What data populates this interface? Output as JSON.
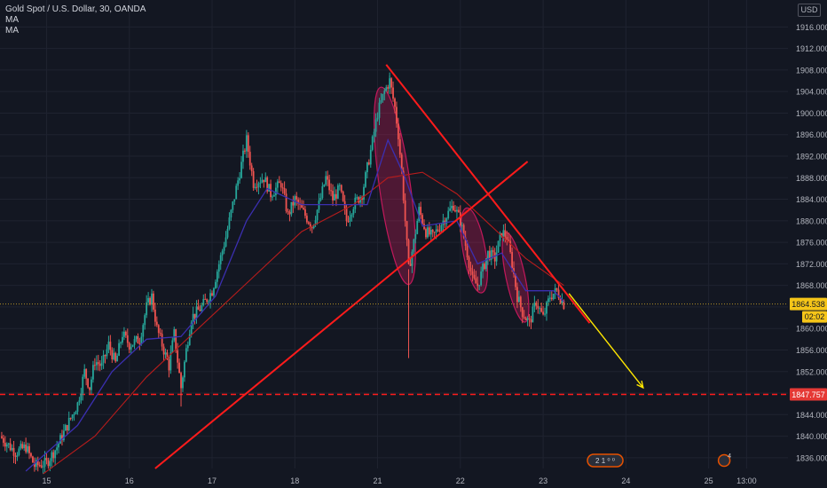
{
  "header": {
    "symbol_line": "Gold Spot / U.S. Dollar, 30, OANDA",
    "indicators": [
      "MA",
      "MA"
    ],
    "currency": "USD"
  },
  "colors": {
    "background": "#131722",
    "grid": "#1f2330",
    "up": "#26a69a",
    "down": "#ef5350",
    "ma_fast": "#3b2fb0",
    "ma_slow": "#b71c1c",
    "trend": "#ff1b1b",
    "arrow": "#ffe600",
    "price_tag": "#f5c518"
  },
  "chart_data": {
    "type": "candlestick",
    "y_ticks": [
      1836,
      1840,
      1844,
      1848,
      1852,
      1856,
      1860,
      1864,
      1868,
      1872,
      1876,
      1880,
      1884,
      1888,
      1892,
      1896,
      1900,
      1904,
      1908,
      1912,
      1916
    ],
    "y_tick_labels": [
      "1836.000",
      "1840.000",
      "1844.000",
      "1848.000",
      "1852.000",
      "1856.000",
      "1860.000",
      "1864.000",
      "1868.000",
      "1872.000",
      "1876.000",
      "1880.000",
      "1884.000",
      "1888.000",
      "1892.000",
      "1896.000",
      "1900.000",
      "1904.000",
      "1908.000",
      "1912.000",
      "1916.000"
    ],
    "ylim": [
      1834,
      1921
    ],
    "x_labels": [
      {
        "label": "15",
        "x": 2
      },
      {
        "label": "16",
        "x": 50
      },
      {
        "label": "17",
        "x": 98
      },
      {
        "label": "18",
        "x": 146
      },
      {
        "label": "21",
        "x": 194
      },
      {
        "label": "22",
        "x": 242
      },
      {
        "label": "23",
        "x": 290
      },
      {
        "label": "24",
        "x": 338
      },
      {
        "label": "25",
        "x": 386
      },
      {
        "label": "13:00",
        "x": 408
      }
    ],
    "xlim": [
      -25,
      432
    ],
    "last_price": {
      "value": 1864.538,
      "label": "1864.538",
      "countdown": "02:02"
    },
    "support_level": {
      "value": 1847.757,
      "label": "1847.757"
    },
    "path": [
      {
        "x": -25,
        "p": 1840
      },
      {
        "x": -16,
        "p": 1837
      },
      {
        "x": -10,
        "p": 1838
      },
      {
        "x": -5,
        "p": 1834.5
      },
      {
        "x": 2,
        "p": 1835
      },
      {
        "x": 8,
        "p": 1838
      },
      {
        "x": 14,
        "p": 1842
      },
      {
        "x": 20,
        "p": 1846
      },
      {
        "x": 24,
        "p": 1852
      },
      {
        "x": 27,
        "p": 1849
      },
      {
        "x": 30,
        "p": 1854
      },
      {
        "x": 34,
        "p": 1853
      },
      {
        "x": 38,
        "p": 1857
      },
      {
        "x": 42,
        "p": 1853.5
      },
      {
        "x": 46,
        "p": 1859
      },
      {
        "x": 50,
        "p": 1857
      },
      {
        "x": 56,
        "p": 1858
      },
      {
        "x": 60,
        "p": 1864
      },
      {
        "x": 63,
        "p": 1866
      },
      {
        "x": 66,
        "p": 1860
      },
      {
        "x": 70,
        "p": 1856
      },
      {
        "x": 73,
        "p": 1853
      },
      {
        "x": 76,
        "p": 1859
      },
      {
        "x": 80,
        "p": 1849
      },
      {
        "x": 83,
        "p": 1856
      },
      {
        "x": 86,
        "p": 1862
      },
      {
        "x": 92,
        "p": 1864
      },
      {
        "x": 98,
        "p": 1867
      },
      {
        "x": 102,
        "p": 1872
      },
      {
        "x": 106,
        "p": 1877
      },
      {
        "x": 110,
        "p": 1883
      },
      {
        "x": 114,
        "p": 1889
      },
      {
        "x": 118,
        "p": 1895
      },
      {
        "x": 122,
        "p": 1887
      },
      {
        "x": 128,
        "p": 1888
      },
      {
        "x": 132,
        "p": 1885
      },
      {
        "x": 138,
        "p": 1887
      },
      {
        "x": 142,
        "p": 1881
      },
      {
        "x": 146,
        "p": 1884
      },
      {
        "x": 150,
        "p": 1882
      },
      {
        "x": 156,
        "p": 1879
      },
      {
        "x": 160,
        "p": 1883
      },
      {
        "x": 164,
        "p": 1888
      },
      {
        "x": 168,
        "p": 1884
      },
      {
        "x": 172,
        "p": 1886
      },
      {
        "x": 176,
        "p": 1880
      },
      {
        "x": 180,
        "p": 1883
      },
      {
        "x": 185,
        "p": 1885
      },
      {
        "x": 190,
        "p": 1893
      },
      {
        "x": 194,
        "p": 1900
      },
      {
        "x": 198,
        "p": 1904
      },
      {
        "x": 201,
        "p": 1906
      },
      {
        "x": 204,
        "p": 1901
      },
      {
        "x": 206,
        "p": 1896
      },
      {
        "x": 208,
        "p": 1889
      },
      {
        "x": 210,
        "p": 1880
      },
      {
        "x": 212,
        "p": 1871
      },
      {
        "x": 215,
        "p": 1876
      },
      {
        "x": 218,
        "p": 1882
      },
      {
        "x": 222,
        "p": 1878
      },
      {
        "x": 226,
        "p": 1877
      },
      {
        "x": 230,
        "p": 1879
      },
      {
        "x": 234,
        "p": 1881
      },
      {
        "x": 238,
        "p": 1883
      },
      {
        "x": 242,
        "p": 1880
      },
      {
        "x": 246,
        "p": 1874
      },
      {
        "x": 249,
        "p": 1869
      },
      {
        "x": 252,
        "p": 1868
      },
      {
        "x": 255,
        "p": 1871
      },
      {
        "x": 258,
        "p": 1874
      },
      {
        "x": 262,
        "p": 1873
      },
      {
        "x": 266,
        "p": 1878
      },
      {
        "x": 269,
        "p": 1877
      },
      {
        "x": 272,
        "p": 1872
      },
      {
        "x": 275,
        "p": 1866
      },
      {
        "x": 278,
        "p": 1863
      },
      {
        "x": 282,
        "p": 1861
      },
      {
        "x": 286,
        "p": 1865
      },
      {
        "x": 290,
        "p": 1862
      },
      {
        "x": 294,
        "p": 1866
      },
      {
        "x": 298,
        "p": 1867
      },
      {
        "x": 302,
        "p": 1864.5
      }
    ],
    "spikes": [
      {
        "x": 80,
        "low": 1845.5
      },
      {
        "x": 212,
        "low": 1854.5
      },
      {
        "x": 201,
        "high": 1907
      }
    ],
    "ma_fast": [
      {
        "x": -10,
        "p": 1833.5
      },
      {
        "x": 20,
        "p": 1842
      },
      {
        "x": 40,
        "p": 1852
      },
      {
        "x": 60,
        "p": 1858
      },
      {
        "x": 80,
        "p": 1858.5
      },
      {
        "x": 100,
        "p": 1866
      },
      {
        "x": 118,
        "p": 1880
      },
      {
        "x": 130,
        "p": 1886
      },
      {
        "x": 150,
        "p": 1883
      },
      {
        "x": 170,
        "p": 1883
      },
      {
        "x": 188,
        "p": 1883
      },
      {
        "x": 200,
        "p": 1895
      },
      {
        "x": 210,
        "p": 1888
      },
      {
        "x": 220,
        "p": 1879
      },
      {
        "x": 240,
        "p": 1880
      },
      {
        "x": 252,
        "p": 1872
      },
      {
        "x": 266,
        "p": 1874
      },
      {
        "x": 280,
        "p": 1867
      },
      {
        "x": 296,
        "p": 1867
      },
      {
        "x": 302,
        "p": 1865
      }
    ],
    "ma_slow": [
      {
        "x": 0,
        "p": 1833
      },
      {
        "x": 30,
        "p": 1840
      },
      {
        "x": 60,
        "p": 1851
      },
      {
        "x": 90,
        "p": 1860
      },
      {
        "x": 120,
        "p": 1869
      },
      {
        "x": 150,
        "p": 1878
      },
      {
        "x": 180,
        "p": 1883
      },
      {
        "x": 200,
        "p": 1888
      },
      {
        "x": 220,
        "p": 1889
      },
      {
        "x": 240,
        "p": 1885
      },
      {
        "x": 260,
        "p": 1879
      },
      {
        "x": 280,
        "p": 1873
      },
      {
        "x": 302,
        "p": 1868
      }
    ],
    "drawings": {
      "descending_trendline": [
        {
          "x": 199,
          "p": 1909
        },
        {
          "x": 317,
          "p": 1861
        }
      ],
      "ascending_trendline": [
        {
          "x": 65,
          "p": 1834
        },
        {
          "x": 281,
          "p": 1891
        }
      ],
      "projection_arrow": [
        {
          "x": 305,
          "p": 1866.5
        },
        {
          "x": 348,
          "p": 1849
        }
      ],
      "ellipses": [
        {
          "cx": 204,
          "cy": 1886.5,
          "rx": 9,
          "ry": 18.5,
          "rot": -8
        },
        {
          "cx": 250,
          "cy": 1874.5,
          "rx": 6.5,
          "ry": 8,
          "rot": -10
        },
        {
          "cx": 274,
          "cy": 1869.5,
          "rx": 5.5,
          "ry": 8.5,
          "rot": -12
        }
      ]
    },
    "event_markers": [
      {
        "x": 326,
        "label": "2 1 ⁰ ⁰"
      },
      {
        "x": 395,
        "label": "4"
      }
    ]
  }
}
